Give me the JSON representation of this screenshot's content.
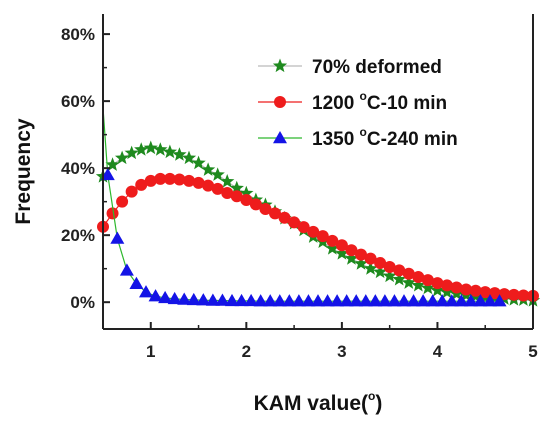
{
  "chart_data": {
    "type": "line",
    "title": "",
    "xlabel": "KAM value",
    "xlabel_unit": "o",
    "xlabel_close": ")",
    "xlabel_open": "(",
    "ylabel": "Frequency",
    "xlim": [
      0.5,
      5
    ],
    "ylim": [
      -0.08,
      0.86
    ],
    "xticks": [
      1,
      2,
      3,
      4,
      5
    ],
    "xtick_labels": [
      "1",
      "2",
      "3",
      "4",
      "5"
    ],
    "yticks": [
      0,
      0.2,
      0.4,
      0.6,
      0.8
    ],
    "ytick_labels": [
      "0%",
      "20%",
      "40%",
      "60%",
      "80%"
    ],
    "grid": false,
    "legend_position": "top-right",
    "series": [
      {
        "name": "70% deformed",
        "legend_label": "70% deformed",
        "marker": "star",
        "color": "#1e8a1e",
        "line_color": "#bbbbbb",
        "x": [
          0.5,
          0.6,
          0.7,
          0.8,
          0.9,
          1.0,
          1.1,
          1.2,
          1.3,
          1.4,
          1.5,
          1.6,
          1.7,
          1.8,
          1.9,
          2.0,
          2.1,
          2.2,
          2.3,
          2.4,
          2.5,
          2.6,
          2.7,
          2.8,
          2.9,
          3.0,
          3.1,
          3.2,
          3.3,
          3.4,
          3.5,
          3.6,
          3.7,
          3.8,
          3.9,
          4.0,
          4.1,
          4.2,
          4.3,
          4.4,
          4.5,
          4.6,
          4.7,
          4.8,
          4.9,
          5.0
        ],
        "y": [
          0.375,
          0.41,
          0.43,
          0.445,
          0.455,
          0.46,
          0.455,
          0.448,
          0.44,
          0.43,
          0.415,
          0.395,
          0.38,
          0.36,
          0.34,
          0.325,
          0.305,
          0.29,
          0.27,
          0.25,
          0.235,
          0.215,
          0.195,
          0.18,
          0.16,
          0.145,
          0.13,
          0.115,
          0.1,
          0.09,
          0.078,
          0.068,
          0.058,
          0.05,
          0.042,
          0.035,
          0.03,
          0.025,
          0.021,
          0.018,
          0.015,
          0.012,
          0.01,
          0.008,
          0.007,
          0.005
        ]
      },
      {
        "name": "1200 °C-10 min",
        "legend_label_pre": "1200 ",
        "legend_label_sup": "o",
        "legend_label_post": "C-10 min",
        "marker": "circle",
        "color": "#ee1c1c",
        "line_color": "#ee1c1c",
        "x": [
          0.5,
          0.6,
          0.7,
          0.8,
          0.9,
          1.0,
          1.1,
          1.2,
          1.3,
          1.4,
          1.5,
          1.6,
          1.7,
          1.8,
          1.9,
          2.0,
          2.1,
          2.2,
          2.3,
          2.4,
          2.5,
          2.6,
          2.7,
          2.8,
          2.9,
          3.0,
          3.1,
          3.2,
          3.3,
          3.4,
          3.5,
          3.6,
          3.7,
          3.8,
          3.9,
          4.0,
          4.1,
          4.2,
          4.3,
          4.4,
          4.5,
          4.6,
          4.7,
          4.8,
          4.9,
          5.0
        ],
        "y": [
          0.225,
          0.265,
          0.3,
          0.33,
          0.35,
          0.362,
          0.368,
          0.368,
          0.366,
          0.362,
          0.356,
          0.348,
          0.338,
          0.326,
          0.316,
          0.305,
          0.292,
          0.278,
          0.265,
          0.252,
          0.238,
          0.224,
          0.21,
          0.197,
          0.183,
          0.17,
          0.155,
          0.142,
          0.13,
          0.117,
          0.105,
          0.095,
          0.085,
          0.075,
          0.066,
          0.057,
          0.05,
          0.044,
          0.038,
          0.034,
          0.03,
          0.027,
          0.024,
          0.022,
          0.02,
          0.019
        ]
      },
      {
        "name": "1350 °C-240 min",
        "legend_label_pre": "1350 ",
        "legend_label_sup": "o",
        "legend_label_post": "C-240 min",
        "marker": "triangle",
        "color": "#1414e6",
        "line_color": "#2db82d",
        "x": [
          0.55,
          0.65,
          0.75,
          0.85,
          0.95,
          1.05,
          1.15,
          1.25,
          1.35,
          1.45,
          1.55,
          1.65,
          1.75,
          1.85,
          1.95,
          2.05,
          2.15,
          2.25,
          2.35,
          2.45,
          2.55,
          2.65,
          2.75,
          2.85,
          2.95,
          3.05,
          3.15,
          3.25,
          3.35,
          3.45,
          3.55,
          3.65,
          3.75,
          3.85,
          3.95,
          4.05,
          4.15,
          4.25,
          4.35,
          4.45,
          4.55,
          4.65
        ],
        "y": [
          0.38,
          0.19,
          0.095,
          0.055,
          0.03,
          0.018,
          0.013,
          0.01,
          0.008,
          0.007,
          0.006,
          0.005,
          0.005,
          0.004,
          0.004,
          0.004,
          0.003,
          0.003,
          0.003,
          0.003,
          0.003,
          0.003,
          0.003,
          0.003,
          0.003,
          0.003,
          0.003,
          0.003,
          0.003,
          0.003,
          0.003,
          0.003,
          0.003,
          0.003,
          0.003,
          0.003,
          0.003,
          0.003,
          0.003,
          0.003,
          0.003,
          0.003
        ],
        "fit_curve": true,
        "fit_start": [
          0.5,
          0.58
        ]
      }
    ]
  },
  "colors": {
    "axis": "#222222",
    "text": "#111111"
  }
}
